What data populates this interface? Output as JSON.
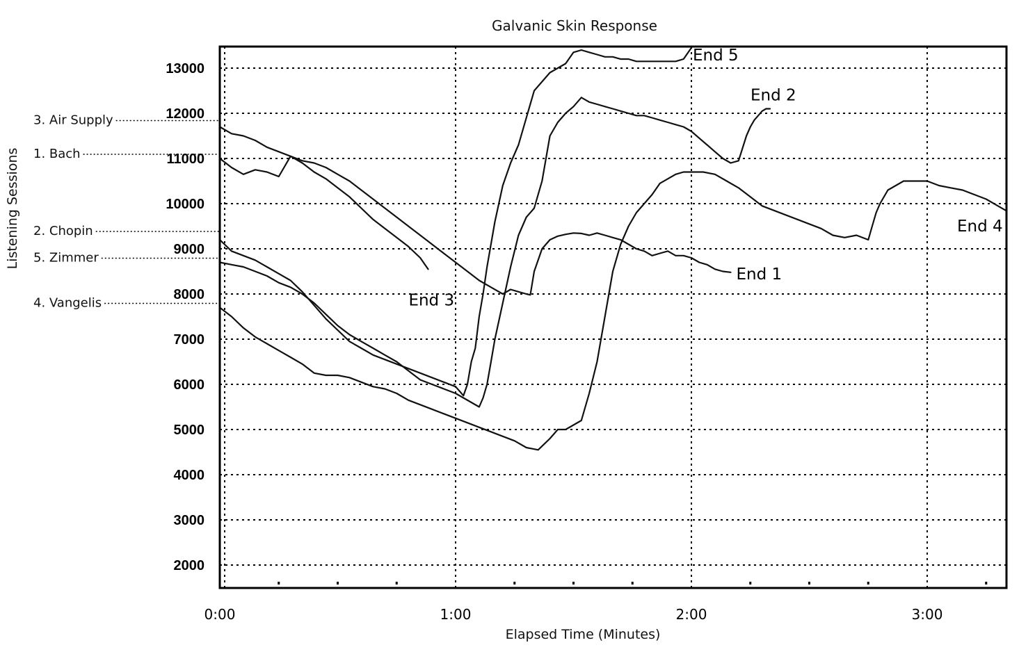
{
  "chart_data": {
    "type": "line",
    "title": "Galvanic Skin Response",
    "xlabel": "Elapsed Time (Minutes)",
    "ylabel": "Listening Sessions",
    "xlim": [
      0,
      200
    ],
    "ylim": [
      1500,
      13500
    ],
    "grid": true,
    "x_ticks": [
      {
        "value": 0,
        "label": "0:00"
      },
      {
        "value": 60,
        "label": "1:00"
      },
      {
        "value": 120,
        "label": "2:00"
      },
      {
        "value": 180,
        "label": "3:00"
      }
    ],
    "y_ticks": [
      2000,
      3000,
      4000,
      5000,
      6000,
      7000,
      8000,
      9000,
      10000,
      11000,
      12000,
      13000
    ],
    "session_labels": [
      {
        "label": "3. Air Supply",
        "y": 11700
      },
      {
        "label": "1. Bach",
        "y": 11000
      },
      {
        "label": "2. Chopin",
        "y": 9200
      },
      {
        "label": "5. Zimmer",
        "y": 8700
      },
      {
        "label": "4. Vangelis",
        "y": 7700
      }
    ],
    "series": [
      {
        "name": "1. Bach",
        "end_label": "End 1",
        "x": [
          0,
          3,
          6,
          9,
          12,
          15,
          18,
          21,
          24,
          27,
          30,
          33,
          36,
          39,
          42,
          45,
          48,
          51,
          54,
          57,
          60,
          63,
          66,
          69,
          72,
          74,
          76,
          78,
          79,
          80,
          82,
          84,
          86,
          88,
          90,
          92,
          94,
          96,
          98,
          100,
          102,
          104,
          106,
          108,
          110,
          112,
          114,
          116,
          118,
          120,
          122,
          124,
          126,
          128,
          130
        ],
        "y": [
          11000,
          10800,
          10650,
          10750,
          10700,
          10600,
          11050,
          10950,
          10900,
          10800,
          10650,
          10500,
          10300,
          10100,
          9900,
          9700,
          9500,
          9300,
          9100,
          8900,
          8700,
          8500,
          8300,
          8150,
          8000,
          8100,
          8050,
          8000,
          7980,
          8500,
          9000,
          9200,
          9280,
          9320,
          9350,
          9340,
          9300,
          9350,
          9300,
          9250,
          9200,
          9100,
          9000,
          8950,
          8850,
          8900,
          8950,
          8850,
          8850,
          8800,
          8700,
          8650,
          8550,
          8500,
          8480
        ]
      },
      {
        "name": "2. Chopin",
        "end_label": "End 2",
        "x": [
          0,
          3,
          6,
          9,
          12,
          15,
          18,
          21,
          24,
          27,
          30,
          33,
          36,
          39,
          42,
          45,
          48,
          51,
          54,
          57,
          60,
          62,
          64,
          66,
          67,
          68,
          69,
          70,
          72,
          74,
          76,
          78,
          80,
          82,
          84,
          86,
          88,
          90,
          92,
          94,
          96,
          98,
          100,
          102,
          104,
          106,
          108,
          110,
          112,
          114,
          116,
          118,
          120,
          122,
          124,
          126,
          128,
          130,
          132,
          134,
          135,
          136,
          137,
          138,
          139,
          140
        ],
        "y": [
          8700,
          8650,
          8600,
          8500,
          8400,
          8250,
          8150,
          8000,
          7800,
          7550,
          7300,
          7100,
          6950,
          6800,
          6650,
          6500,
          6300,
          6100,
          6000,
          5900,
          5800,
          5700,
          5600,
          5500,
          5700,
          6000,
          6500,
          7000,
          7800,
          8600,
          9300,
          9700,
          9900,
          10500,
          11500,
          11800,
          12000,
          12150,
          12350,
          12250,
          12200,
          12150,
          12100,
          12050,
          12000,
          11950,
          11950,
          11900,
          11850,
          11800,
          11750,
          11700,
          11600,
          11450,
          11300,
          11150,
          11000,
          10900,
          10950,
          11500,
          11700,
          11850,
          11950,
          12050,
          12100,
          12100
        ]
      },
      {
        "name": "3. Air Supply",
        "end_label": "End 3",
        "x": [
          0,
          3,
          6,
          9,
          12,
          15,
          18,
          21,
          24,
          27,
          30,
          33,
          36,
          39,
          42,
          45,
          48,
          51,
          53
        ],
        "y": [
          11700,
          11550,
          11500,
          11400,
          11250,
          11150,
          11050,
          10900,
          10700,
          10550,
          10350,
          10150,
          9900,
          9650,
          9450,
          9250,
          9050,
          8800,
          8550
        ]
      },
      {
        "name": "4. Vangelis",
        "end_label": "End 4",
        "x": [
          0,
          3,
          6,
          9,
          12,
          15,
          18,
          21,
          24,
          27,
          30,
          33,
          36,
          39,
          42,
          45,
          48,
          51,
          54,
          57,
          60,
          63,
          66,
          69,
          72,
          75,
          78,
          81,
          84,
          86,
          88,
          90,
          92,
          94,
          96,
          98,
          100,
          102,
          104,
          106,
          108,
          110,
          112,
          114,
          116,
          118,
          120,
          123,
          126,
          129,
          132,
          135,
          138,
          141,
          144,
          147,
          150,
          153,
          156,
          159,
          162,
          165,
          166,
          167,
          168,
          170,
          172,
          174,
          176,
          178,
          180,
          183,
          186,
          189,
          192,
          195,
          198,
          200
        ],
        "y": [
          7700,
          7500,
          7250,
          7050,
          6900,
          6750,
          6600,
          6450,
          6250,
          6200,
          6200,
          6150,
          6050,
          5950,
          5900,
          5800,
          5650,
          5550,
          5450,
          5350,
          5250,
          5150,
          5050,
          4950,
          4850,
          4750,
          4600,
          4550,
          4800,
          5000,
          5000,
          5100,
          5200,
          5800,
          6500,
          7500,
          8500,
          9100,
          9500,
          9800,
          10000,
          10200,
          10450,
          10550,
          10650,
          10700,
          10700,
          10700,
          10650,
          10500,
          10350,
          10150,
          9950,
          9850,
          9750,
          9650,
          9550,
          9450,
          9300,
          9250,
          9300,
          9200,
          9500,
          9800,
          10000,
          10300,
          10400,
          10500,
          10500,
          10500,
          10500,
          10400,
          10350,
          10300,
          10200,
          10100,
          9950,
          9850
        ]
      },
      {
        "name": "5. Zimmer",
        "end_label": "End 5",
        "x": [
          0,
          3,
          6,
          9,
          12,
          15,
          18,
          21,
          24,
          27,
          30,
          33,
          36,
          39,
          42,
          45,
          48,
          51,
          54,
          57,
          60,
          61,
          62,
          63,
          64,
          65,
          66,
          67,
          68,
          70,
          72,
          74,
          76,
          78,
          80,
          82,
          84,
          86,
          88,
          90,
          92,
          94,
          96,
          98,
          100,
          102,
          104,
          106,
          108,
          110,
          112,
          114,
          116,
          118,
          120
        ],
        "y": [
          9200,
          8950,
          8850,
          8750,
          8600,
          8450,
          8300,
          8050,
          7750,
          7450,
          7200,
          6950,
          6800,
          6650,
          6550,
          6450,
          6350,
          6250,
          6150,
          6050,
          5950,
          5850,
          5750,
          6000,
          6500,
          6800,
          7500,
          8000,
          8600,
          9600,
          10400,
          10900,
          11300,
          11900,
          12500,
          12700,
          12900,
          13000,
          13100,
          13350,
          13400,
          13350,
          13300,
          13250,
          13250,
          13200,
          13200,
          13150,
          13150,
          13150,
          13150,
          13150,
          13150,
          13200,
          13450
        ]
      }
    ]
  }
}
